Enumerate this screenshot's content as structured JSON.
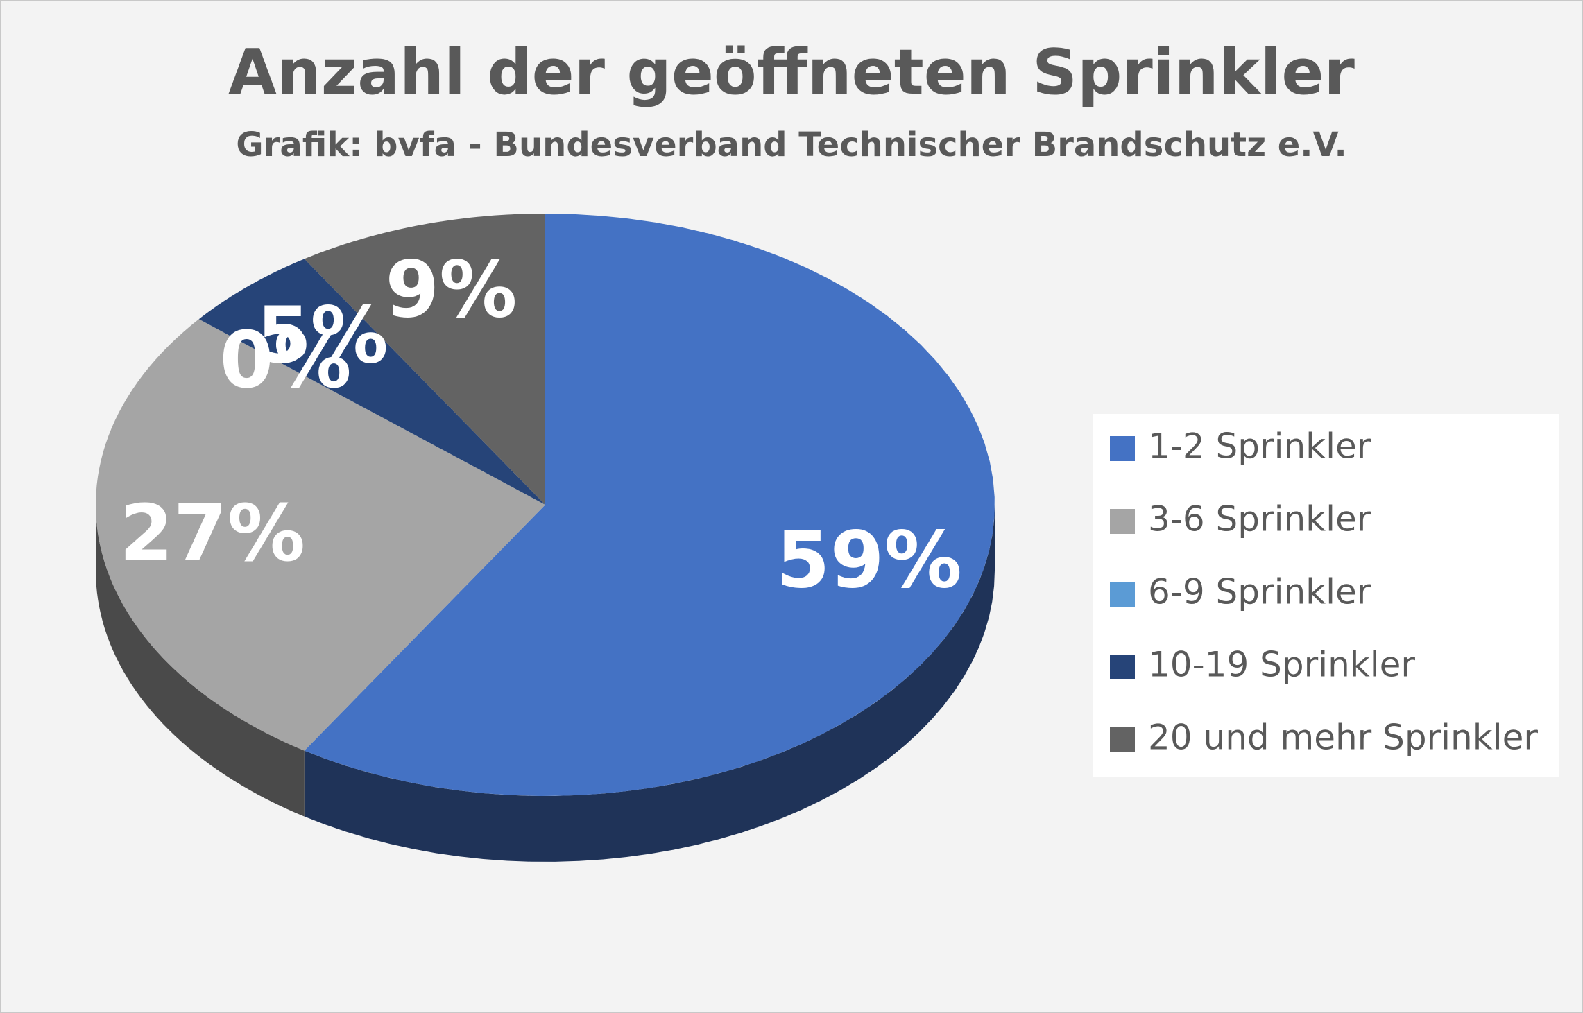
{
  "chart_data": {
    "type": "pie",
    "title": "Anzahl der geöffneten Sprinkler",
    "subtitle": "Grafik: bvfa - Bundesverband Technischer Brandschutz e.V.",
    "categories": [
      "1-2 Sprinkler",
      "3-6 Sprinkler",
      "6-9 Sprinkler",
      "10-19 Sprinkler",
      "20 und mehr Sprinkler"
    ],
    "values": [
      59,
      27,
      0,
      5,
      9
    ],
    "value_labels": [
      "59%",
      "27%",
      "0%",
      "5%",
      "9%"
    ],
    "colors": [
      "#4472c4",
      "#a5a5a5",
      "#5b9bd5",
      "#264478",
      "#636363"
    ],
    "legend": "right"
  }
}
